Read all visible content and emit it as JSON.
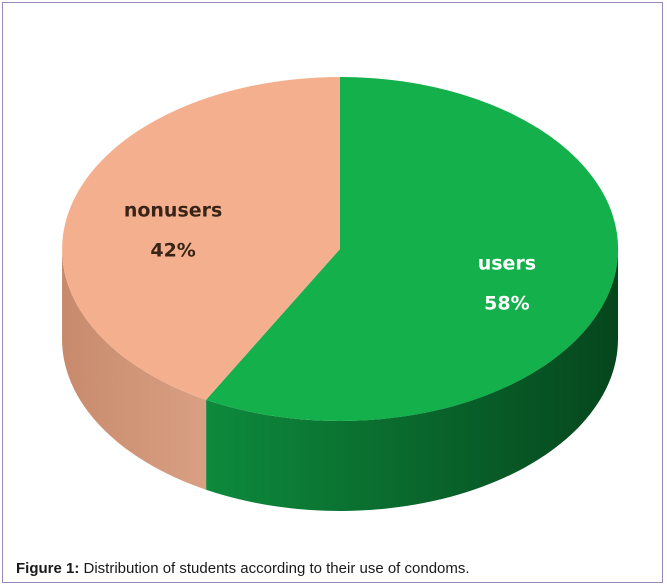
{
  "chart_data": {
    "type": "pie",
    "style": "3d",
    "title": "",
    "slices": [
      {
        "label": "users",
        "value": 58,
        "value_label": "58%",
        "color": "#13b04c",
        "side_color": "#0a6a2c"
      },
      {
        "label": "nonusers",
        "value": 42,
        "value_label": "42%",
        "color": "#f4b08e",
        "side_color": "#cf9272"
      }
    ]
  },
  "caption": {
    "label": "Figure 1:",
    "text": " Distribution of students according to their use of condoms."
  }
}
